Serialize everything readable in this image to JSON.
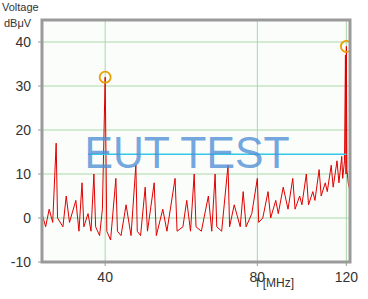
{
  "chart_data": {
    "type": "line",
    "ylabel": "Voltage",
    "ylabel_unit": "dBμV",
    "xlabel": "f [MHz]",
    "log": "x",
    "grid": true,
    "xlim": [
      30,
      122
    ],
    "xticks": [
      40,
      80,
      120
    ],
    "ylim": [
      -10,
      45
    ],
    "yticks": [
      -10,
      0,
      10,
      20,
      30,
      40
    ],
    "annotations": [
      {
        "text": "EUT TEST"
      }
    ],
    "series": [
      {
        "color": "#e00000",
        "x": [
          30,
          30.5,
          31,
          31.5,
          32,
          32.2,
          33,
          33.5,
          34,
          35,
          35.5,
          36,
          36.3,
          37,
          37.5,
          38,
          38.3,
          39,
          39.5,
          40,
          40.3,
          41,
          42,
          42.3,
          43,
          44,
          45,
          46,
          46.3,
          47,
          48,
          48.5,
          50,
          50.5,
          52,
          53,
          55,
          55.5,
          57,
          58,
          59,
          60,
          60.5,
          62,
          64,
          65,
          66,
          66.5,
          68,
          70,
          70.5,
          72,
          74,
          75,
          76,
          78,
          80,
          80.5,
          82,
          84,
          85,
          87,
          88,
          90,
          92,
          94,
          95,
          97,
          98,
          100,
          101,
          103,
          104,
          106,
          107,
          109,
          110,
          112,
          113,
          115,
          116,
          117.5,
          118,
          119,
          119.5,
          119.8,
          120,
          120.3,
          121,
          122
        ],
        "values": [
          1,
          -2,
          2,
          -1,
          17,
          0,
          -2,
          5,
          -1,
          4,
          -3,
          8,
          -2,
          1,
          -3,
          10,
          -2,
          -4,
          2,
          32,
          -3,
          -5,
          9,
          -3,
          -4,
          3,
          -4,
          12,
          -3,
          -4,
          7,
          -3,
          8,
          -4,
          2,
          -3,
          9,
          -3,
          -2,
          4,
          -3,
          10,
          -2,
          -3,
          5,
          -3,
          10,
          -2,
          -3,
          12,
          -2,
          3,
          -2,
          6,
          -2,
          1,
          9,
          -1,
          0,
          6,
          0,
          4,
          1,
          7,
          2,
          9,
          2,
          5,
          3,
          10,
          3,
          6,
          4,
          11,
          5,
          8,
          6,
          12,
          7,
          13,
          8,
          14,
          9,
          13,
          37,
          10,
          39,
          11,
          8,
          6
        ]
      },
      {
        "type": "line",
        "color": "#33c8e8",
        "x": [
          37,
          120
        ],
        "values": [
          14.5,
          14.5
        ]
      },
      {
        "type": "scatter",
        "marker": "circle",
        "color": "#e8a000",
        "x": [
          40,
          120
        ],
        "values": [
          32,
          39
        ]
      }
    ]
  }
}
